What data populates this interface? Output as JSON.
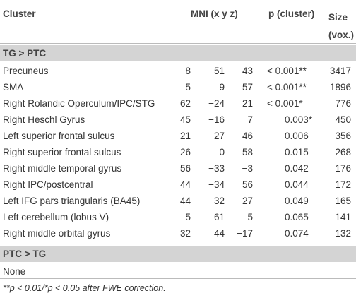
{
  "table": {
    "header": [
      "Cluster",
      "MNI (x y z)",
      "p (cluster)",
      "Size (vox.)"
    ],
    "sections": [
      {
        "title": "TG > PTC",
        "rows": [
          [
            "Precuneus",
            "8",
            "−51",
            "43",
            "< 0.001**",
            "3417"
          ],
          [
            "SMA",
            "5",
            "9",
            "57",
            "< 0.001**",
            "1896"
          ],
          [
            "Right Rolandic Operculum/IPC/STG",
            "62",
            "−24",
            "21",
            "< 0.001*",
            "776"
          ],
          [
            "Right Heschl Gyrus",
            "45",
            "−16",
            "7",
            "0.003*",
            "450"
          ],
          [
            "Left superior frontal sulcus",
            "−21",
            "27",
            "46",
            "0.006",
            "356"
          ],
          [
            "Right superior frontal sulcus",
            "26",
            "0",
            "58",
            "0.015",
            "268"
          ],
          [
            "Right middle temporal gyrus",
            "56",
            "−33",
            "−3",
            "0.042",
            "176"
          ],
          [
            "Right IPC/postcentral",
            "44",
            "−34",
            "56",
            "0.044",
            "172"
          ],
          [
            "Left IFG pars triangularis (BA45)",
            "−44",
            "32",
            "27",
            "0.049",
            "165"
          ],
          [
            "Left cerebellum (lobus V)",
            "−5",
            "−61",
            "−5",
            "0.065",
            "141"
          ],
          [
            "Right middle orbital gyrus",
            "32",
            "44",
            "−17",
            "0.074",
            "132"
          ]
        ]
      },
      {
        "title": "PTC > TG",
        "rows": [
          [
            "None"
          ]
        ]
      }
    ],
    "footnote": "**p < 0.01/*p < 0.05 after FWE correction."
  }
}
